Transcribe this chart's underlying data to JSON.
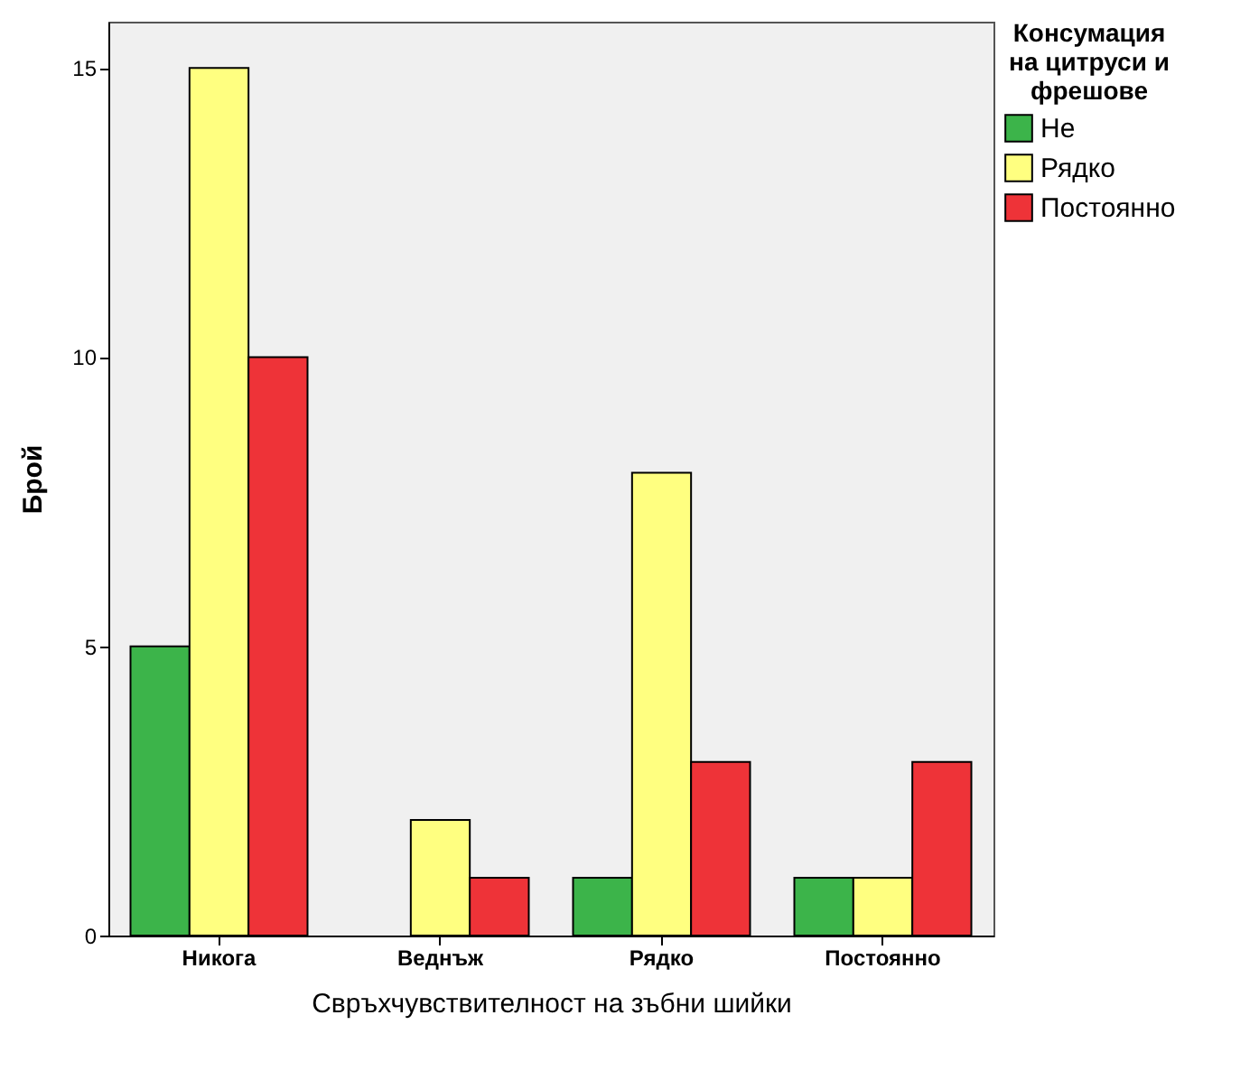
{
  "chart_data": {
    "type": "bar",
    "xlabel": "Свръхчувствителност на зъбни шийки",
    "ylabel": "Брой",
    "legend_title": "Консумация на цитруси и фрешове",
    "legend": "top right",
    "grid": false,
    "categories": [
      "Никога",
      "Веднъж",
      "Рядко",
      "Постоянно"
    ],
    "series": [
      {
        "name": "Не",
        "color": "#3cb44a",
        "values": [
          5,
          null,
          1,
          1
        ]
      },
      {
        "name": "Рядко",
        "color": "#ffff80",
        "values": [
          15,
          2,
          8,
          1
        ]
      },
      {
        "name": "Постоянно",
        "color": "#ee3338",
        "values": [
          10,
          1,
          3,
          3
        ]
      }
    ],
    "ylim": [
      0,
      15.8
    ],
    "yticks": [
      0,
      5,
      10,
      15
    ]
  }
}
